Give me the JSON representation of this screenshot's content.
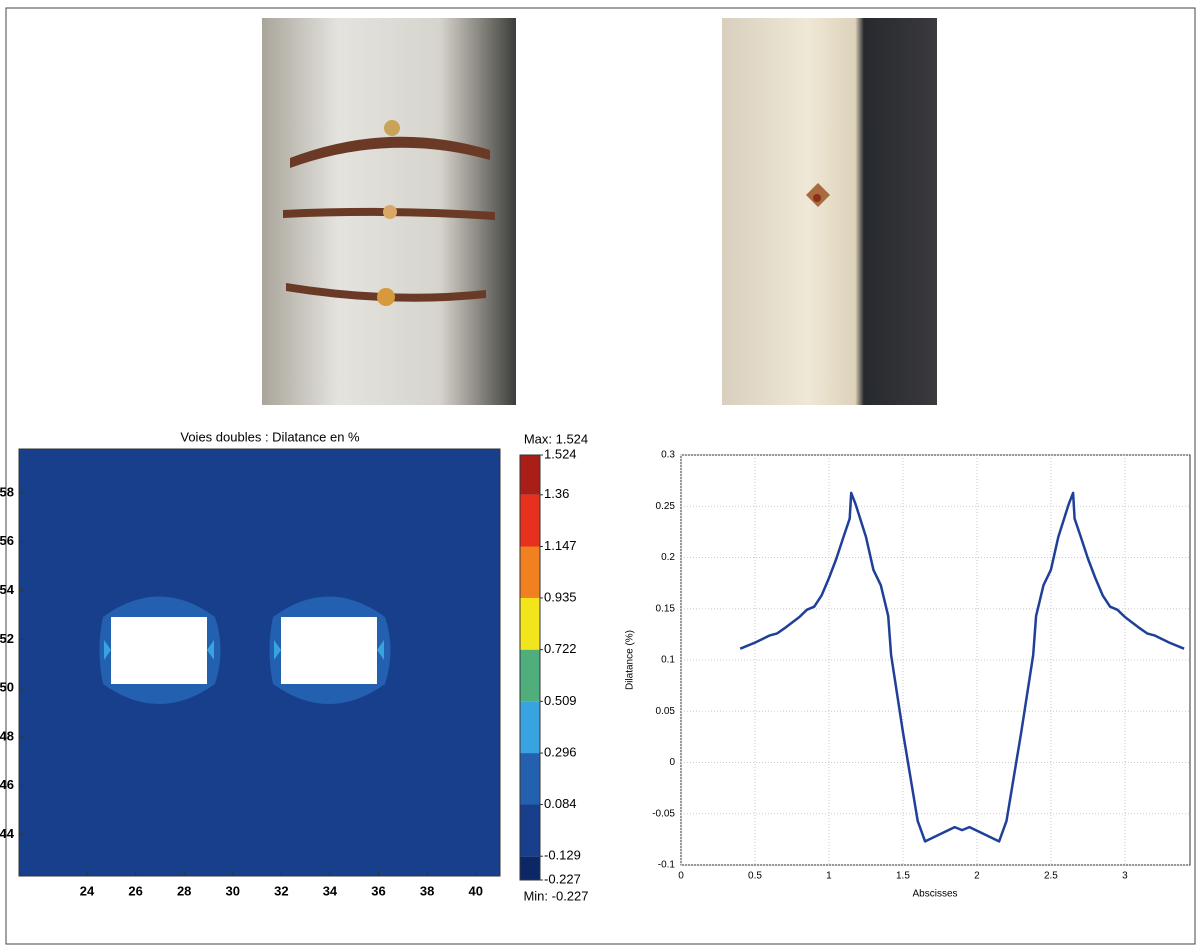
{
  "chart_data": [
    {
      "type": "contour",
      "title": "Voies doubles : Dilatance en %",
      "xlim": [
        21.2,
        41.0
      ],
      "ylim": [
        42.3,
        59.8
      ],
      "xticks": [
        24,
        26,
        28,
        30,
        32,
        34,
        36,
        38,
        40
      ],
      "yticks": [
        44,
        46,
        48,
        50,
        52,
        54,
        56,
        58
      ],
      "max_label": "Max: 1.524",
      "min_label": "Min: -0.227",
      "levels": [
        -0.227,
        -0.129,
        0.084,
        0.296,
        0.509,
        0.722,
        0.935,
        1.147,
        1.36,
        1.524
      ],
      "colors": [
        "#0c2766",
        "#173f8c",
        "#2460b0",
        "#38a3df",
        "#4fae7c",
        "#f3e51c",
        "#f08020",
        "#e8301f",
        "#a91f18"
      ]
    },
    {
      "type": "line",
      "xlabel": "Abscisses",
      "ylabel": "Dilatance (%)",
      "xlim": [
        0,
        3.44
      ],
      "ylim": [
        -0.1,
        0.3
      ],
      "xticks": [
        0,
        0.5,
        1,
        1.5,
        2,
        2.5,
        3
      ],
      "yticks": [
        -0.1,
        -0.05,
        0,
        0.05,
        0.1,
        0.15,
        0.2,
        0.25,
        0.3
      ],
      "grid": true,
      "color": "#1f3f99",
      "x": [
        0.4,
        0.5,
        0.6,
        0.65,
        0.7,
        0.8,
        0.85,
        0.9,
        0.95,
        1.0,
        1.05,
        1.1,
        1.14,
        1.15,
        1.18,
        1.25,
        1.3,
        1.35,
        1.4,
        1.42,
        1.5,
        1.6,
        1.65,
        1.75,
        1.85,
        1.9,
        1.95,
        2.05,
        2.15,
        2.2,
        2.3,
        2.38,
        2.4,
        2.45,
        2.5,
        2.55,
        2.62,
        2.65,
        2.66,
        2.7,
        2.75,
        2.8,
        2.85,
        2.9,
        2.95,
        3.0,
        3.1,
        3.15,
        3.2,
        3.3,
        3.4
      ],
      "values": [
        0.111,
        0.117,
        0.124,
        0.126,
        0.131,
        0.142,
        0.149,
        0.152,
        0.163,
        0.18,
        0.199,
        0.221,
        0.238,
        0.263,
        0.252,
        0.22,
        0.188,
        0.173,
        0.143,
        0.105,
        0.03,
        -0.057,
        -0.077,
        -0.07,
        -0.063,
        -0.066,
        -0.063,
        -0.07,
        -0.077,
        -0.057,
        0.03,
        0.105,
        0.143,
        0.173,
        0.188,
        0.22,
        0.252,
        0.263,
        0.238,
        0.221,
        0.199,
        0.18,
        0.163,
        0.152,
        0.149,
        0.142,
        0.131,
        0.126,
        0.124,
        0.117,
        0.111
      ]
    }
  ]
}
